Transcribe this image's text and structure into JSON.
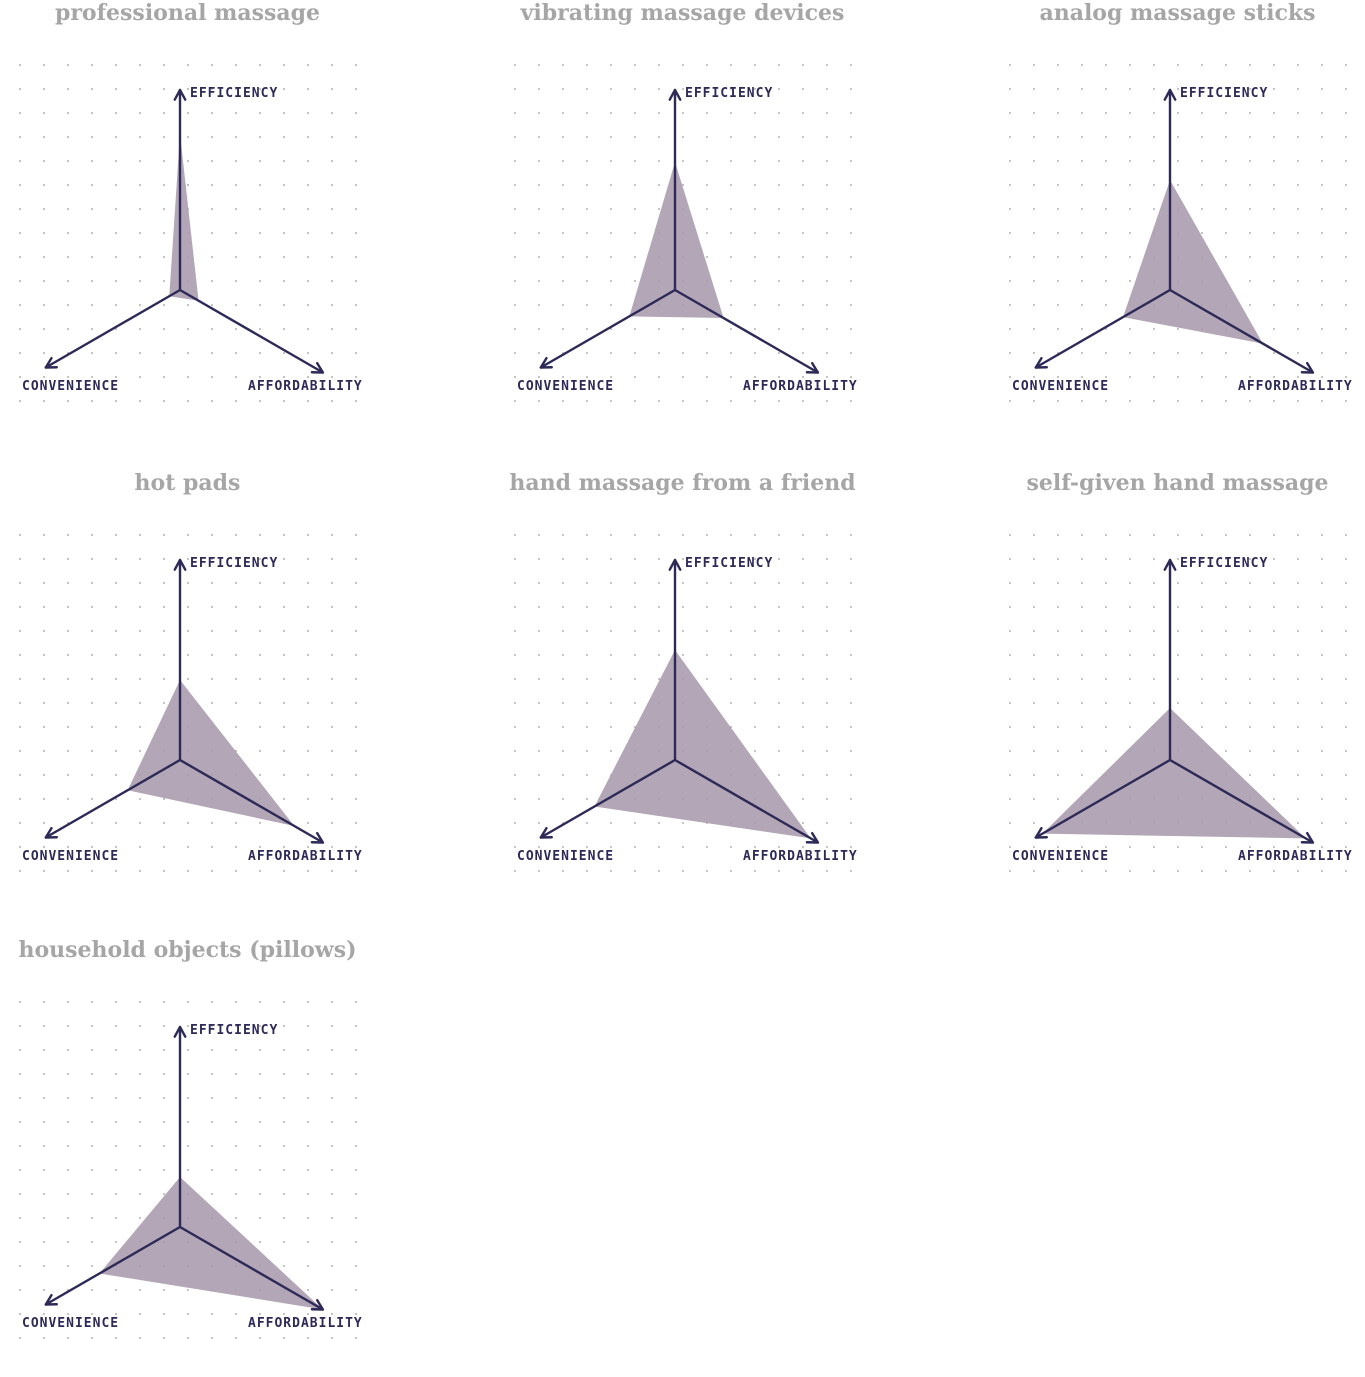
{
  "chart_data": [
    {
      "type": "radar",
      "title": "professional massage",
      "axes": [
        "EFFICIENCY",
        "CONVENIENCE",
        "AFFORDABILITY"
      ],
      "values": [
        0.78,
        0.08,
        0.13
      ],
      "scale": [
        0,
        1
      ],
      "fill_color": "#ab9cae",
      "axis_color": "#2d2a57"
    },
    {
      "type": "radar",
      "title": "vibrating massage devices",
      "axes": [
        "EFFICIENCY",
        "CONVENIENCE",
        "AFFORDABILITY"
      ],
      "values": [
        0.64,
        0.34,
        0.34
      ],
      "scale": [
        0,
        1
      ],
      "fill_color": "#ab9cae",
      "axis_color": "#2d2a57"
    },
    {
      "type": "radar",
      "title": "analog massage sticks",
      "axes": [
        "EFFICIENCY",
        "CONVENIENCE",
        "AFFORDABILITY"
      ],
      "values": [
        0.55,
        0.35,
        0.65
      ],
      "scale": [
        0,
        1
      ],
      "fill_color": "#ab9cae",
      "axis_color": "#2d2a57"
    },
    {
      "type": "radar",
      "title": "hot pads",
      "axes": [
        "EFFICIENCY",
        "CONVENIENCE",
        "AFFORDABILITY"
      ],
      "values": [
        0.4,
        0.39,
        0.8
      ],
      "scale": [
        0,
        1
      ],
      "fill_color": "#ab9cae",
      "axis_color": "#2d2a57"
    },
    {
      "type": "radar",
      "title": "hand massage from a friend",
      "axes": [
        "EFFICIENCY",
        "CONVENIENCE",
        "AFFORDABILITY"
      ],
      "values": [
        0.55,
        0.6,
        0.95
      ],
      "scale": [
        0,
        1
      ],
      "fill_color": "#ab9cae",
      "axis_color": "#2d2a57"
    },
    {
      "type": "radar",
      "title": "self-given hand massage",
      "axes": [
        "EFFICIENCY",
        "CONVENIENCE",
        "AFFORDABILITY"
      ],
      "values": [
        0.26,
        0.95,
        0.95
      ],
      "scale": [
        0,
        1
      ],
      "fill_color": "#ab9cae",
      "axis_color": "#2d2a57"
    },
    {
      "type": "radar",
      "title": "household objects (pillows)",
      "axes": [
        "EFFICIENCY",
        "CONVENIENCE",
        "AFFORDABILITY"
      ],
      "values": [
        0.25,
        0.6,
        1.0
      ],
      "scale": [
        0,
        1
      ],
      "fill_color": "#ab9cae",
      "axis_color": "#2d2a57"
    }
  ]
}
